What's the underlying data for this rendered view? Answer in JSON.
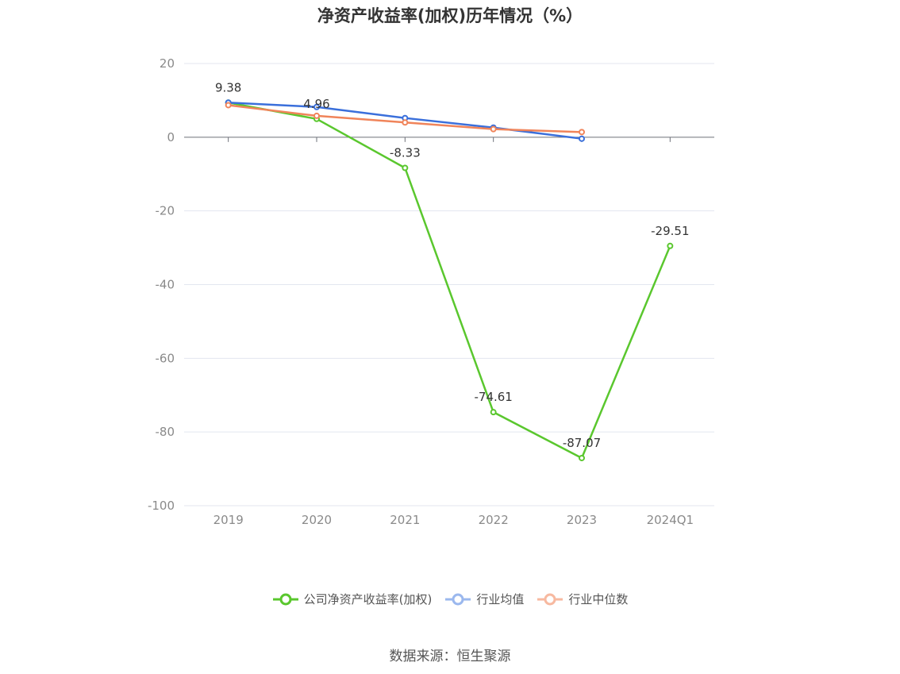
{
  "chart_data": {
    "type": "line",
    "title": "净资产收益率(加权)历年情况（%）",
    "categories": [
      "2019",
      "2020",
      "2021",
      "2022",
      "2023",
      "2024Q1"
    ],
    "ylim": [
      -100,
      20
    ],
    "yticks": [
      20,
      0,
      -20,
      -40,
      -60,
      -80,
      -100
    ],
    "grid": true,
    "legend_position": "bottom",
    "series": [
      {
        "name": "公司净资产收益率(加权)",
        "color": "#5ac72e",
        "values": [
          9.38,
          4.96,
          -8.33,
          -74.61,
          -87.07,
          -29.51
        ],
        "labels": [
          "9.38",
          "4.96",
          "-8.33",
          "-74.61",
          "-87.07",
          "-29.51"
        ]
      },
      {
        "name": "行业均值",
        "color": "#3a6fdb",
        "values": [
          9.4,
          8.2,
          5.2,
          2.6,
          -0.4,
          null
        ]
      },
      {
        "name": "行业中位数",
        "color": "#f0845a",
        "values": [
          8.7,
          5.8,
          4.0,
          2.2,
          1.4,
          null
        ]
      }
    ]
  },
  "source": "数据来源：恒生聚源"
}
